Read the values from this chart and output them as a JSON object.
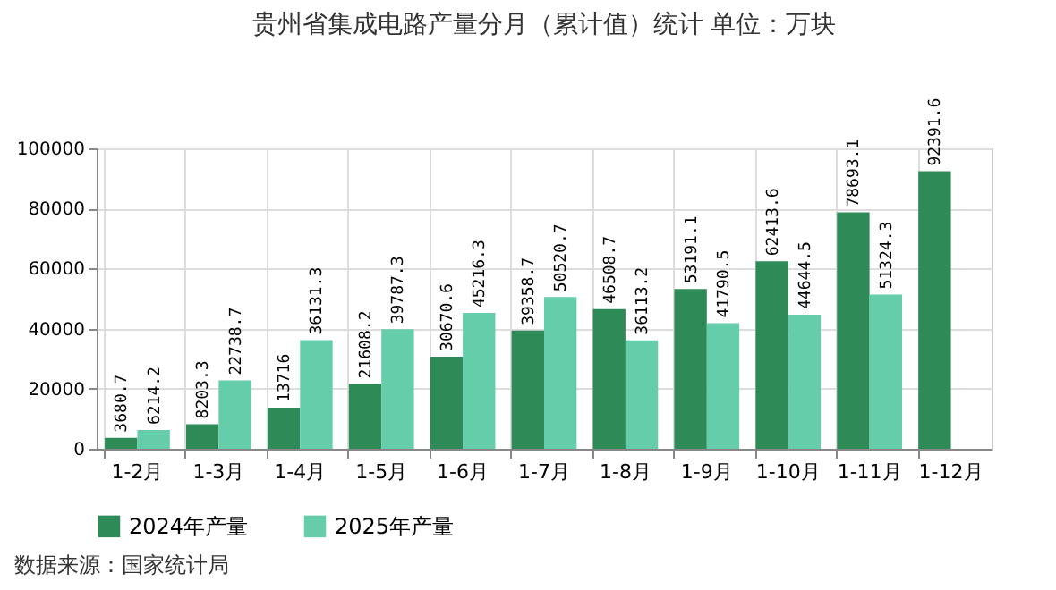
{
  "chart_data": {
    "type": "bar",
    "title": "贵州省集成电路产量分月（累计值）统计 单位：万块",
    "categories": [
      "1-2月",
      "1-3月",
      "1-4月",
      "1-5月",
      "1-6月",
      "1-7月",
      "1-8月",
      "1-9月",
      "1-10月",
      "1-11月",
      "1-12月"
    ],
    "series": [
      {
        "name": "2024年产量",
        "color": "#2e8b57",
        "values": [
          3680.7,
          8203.3,
          13716,
          21608.2,
          30670.6,
          39358.7,
          46508.7,
          53191.1,
          62413.6,
          78693.1,
          92391.6
        ]
      },
      {
        "name": "2025年产量",
        "color": "#66cdaa",
        "values": [
          6214.2,
          22738.7,
          36131.3,
          39787.3,
          45216.3,
          50520.7,
          36113.2,
          41790.5,
          44644.5,
          51324.3,
          null
        ]
      }
    ],
    "ylim": [
      0,
      100000
    ],
    "yticks": [
      0,
      20000,
      40000,
      60000,
      80000,
      100000
    ],
    "grid": true,
    "legend": "bottom",
    "data_labels": true,
    "annotations": [
      "数据来源：国家统计局"
    ]
  }
}
